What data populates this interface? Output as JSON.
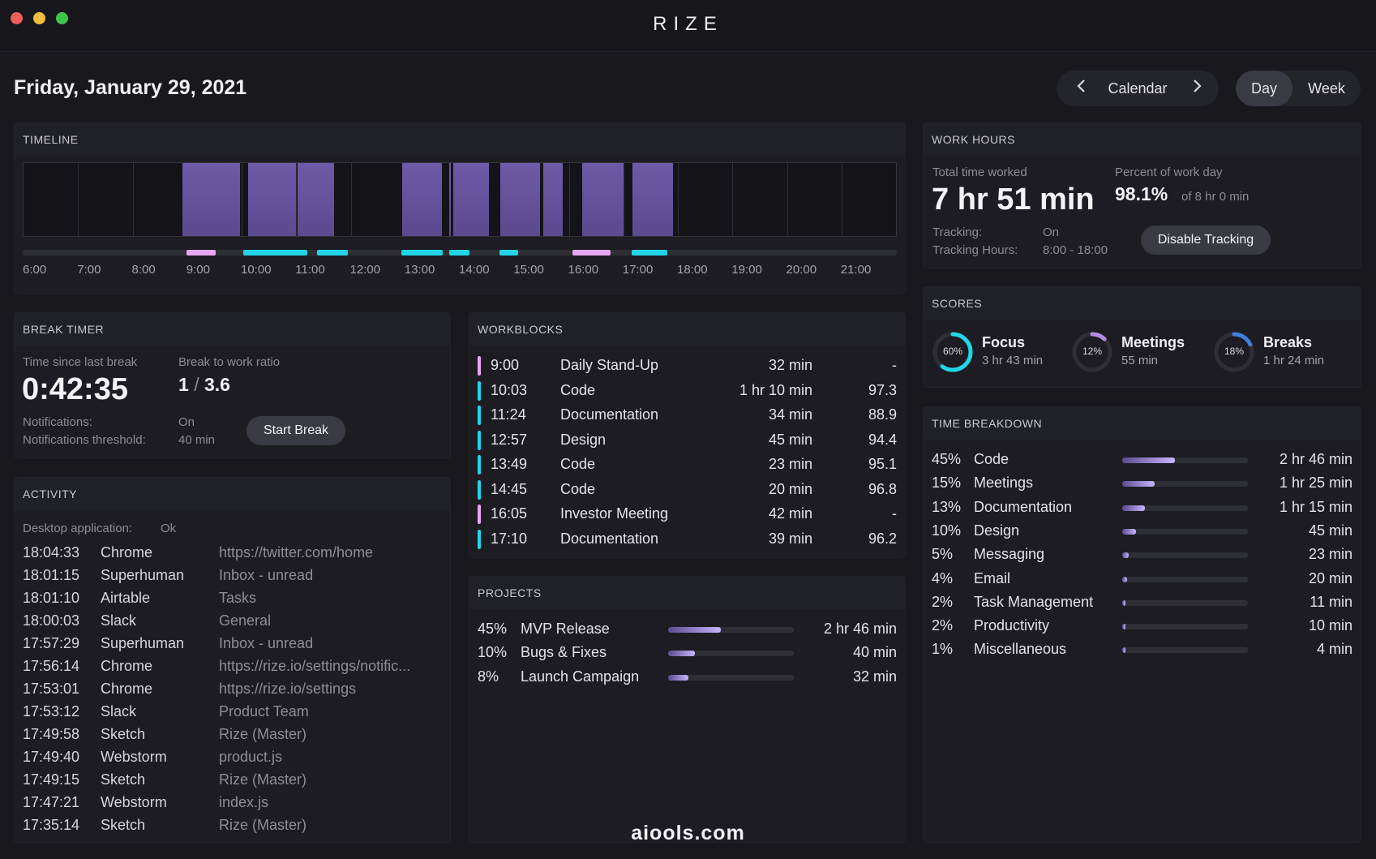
{
  "app": {
    "title": "RIZE"
  },
  "traffic_lights": [
    "#ed5f57",
    "#f4bd3b",
    "#3fc34a"
  ],
  "date": "Friday, January 29, 2021",
  "calendar_nav": {
    "label": "Calendar",
    "prev_icon": "chevron-left-icon",
    "next_icon": "chevron-right-icon"
  },
  "view_toggle": {
    "day": "Day",
    "week": "Week",
    "selected": "Day"
  },
  "colors": {
    "accent_purple": "#7a63c4",
    "meeting_pink": "#e6a6f2",
    "focus_cyan": "#22d4e6",
    "break_blue": "#3d7fe0"
  },
  "timeline": {
    "title": "TIMELINE",
    "ticks": [
      "6:00",
      "7:00",
      "8:00",
      "9:00",
      "10:00",
      "11:00",
      "12:00",
      "13:00",
      "14:00",
      "15:00",
      "16:00",
      "17:00",
      "18:00",
      "19:00",
      "20:00",
      "21:00"
    ],
    "start_hour": 6,
    "end_hour": 22,
    "active_blocks": [
      {
        "start": "8:55",
        "end": "9:00"
      },
      {
        "start": "9:00",
        "end": "9:58"
      },
      {
        "start": "10:07",
        "end": "11:00"
      },
      {
        "start": "11:02",
        "end": "11:42"
      },
      {
        "start": "12:57",
        "end": "13:40"
      },
      {
        "start": "13:48",
        "end": "13:50"
      },
      {
        "start": "13:53",
        "end": "14:32"
      },
      {
        "start": "14:45",
        "end": "15:28"
      },
      {
        "start": "15:32",
        "end": "15:53"
      },
      {
        "start": "16:15",
        "end": "17:00"
      },
      {
        "start": "17:10",
        "end": "17:55"
      }
    ],
    "markers": [
      {
        "start": "9:00",
        "end": "9:32",
        "kind": "meeting"
      },
      {
        "start": "10:03",
        "end": "11:13",
        "kind": "focus"
      },
      {
        "start": "11:24",
        "end": "11:58",
        "kind": "focus"
      },
      {
        "start": "12:57",
        "end": "13:42",
        "kind": "focus"
      },
      {
        "start": "13:49",
        "end": "14:12",
        "kind": "focus"
      },
      {
        "start": "14:45",
        "end": "15:05",
        "kind": "focus"
      },
      {
        "start": "16:05",
        "end": "16:47",
        "kind": "meeting"
      },
      {
        "start": "17:10",
        "end": "17:49",
        "kind": "focus"
      }
    ]
  },
  "work_hours": {
    "title": "WORK HOURS",
    "total_label": "Total time worked",
    "total_value": "7 hr 51 min",
    "percent_label": "Percent of work day",
    "percent_value": "98.1%",
    "percent_of": "of 8 hr 0 min",
    "tracking_label": "Tracking:",
    "tracking_value": "On",
    "tracking_hours_label": "Tracking Hours:",
    "tracking_hours_value": "8:00 - 18:00",
    "disable_button": "Disable Tracking"
  },
  "scores": {
    "title": "SCORES",
    "items": [
      {
        "name": "Focus",
        "value": "3 hr 43 min",
        "percent_label": "60%",
        "percent": 60,
        "color": "#22d4e6"
      },
      {
        "name": "Meetings",
        "value": "55 min",
        "percent_label": "12%",
        "percent": 12,
        "color": "#b48be6"
      },
      {
        "name": "Breaks",
        "value": "1 hr 24 min",
        "percent_label": "18%",
        "percent": 18,
        "color": "#3d7fe0"
      }
    ]
  },
  "break_timer": {
    "title": "BREAK TIMER",
    "since_label": "Time since last break",
    "since_value": "0:42:35",
    "ratio_label": "Break to work ratio",
    "ratio_left": "1",
    "ratio_sep": "/",
    "ratio_right": "3.6",
    "notifications_label": "Notifications:",
    "notifications_value": "On",
    "threshold_label": "Notifications threshold:",
    "threshold_value": "40 min",
    "start_button": "Start Break"
  },
  "workblocks": {
    "title": "WORKBLOCKS",
    "rows": [
      {
        "time": "9:00",
        "name": "Daily Stand-Up",
        "duration": "32 min",
        "score": "-",
        "kind": "meeting"
      },
      {
        "time": "10:03",
        "name": "Code",
        "duration": "1 hr 10 min",
        "score": "97.3",
        "kind": "focus"
      },
      {
        "time": "11:24",
        "name": "Documentation",
        "duration": "34 min",
        "score": "88.9",
        "kind": "focus"
      },
      {
        "time": "12:57",
        "name": "Design",
        "duration": "45 min",
        "score": "94.4",
        "kind": "focus"
      },
      {
        "time": "13:49",
        "name": "Code",
        "duration": "23 min",
        "score": "95.1",
        "kind": "focus"
      },
      {
        "time": "14:45",
        "name": "Code",
        "duration": "20 min",
        "score": "96.8",
        "kind": "focus"
      },
      {
        "time": "16:05",
        "name": "Investor Meeting",
        "duration": "42 min",
        "score": "-",
        "kind": "meeting"
      },
      {
        "time": "17:10",
        "name": "Documentation",
        "duration": "39 min",
        "score": "96.2",
        "kind": "focus"
      }
    ]
  },
  "projects": {
    "title": "PROJECTS",
    "rows": [
      {
        "percent": "45%",
        "fraction": 0.42,
        "name": "MVP Release",
        "duration": "2 hr 46 min"
      },
      {
        "percent": "10%",
        "fraction": 0.21,
        "name": "Bugs & Fixes",
        "duration": "40 min"
      },
      {
        "percent": "8%",
        "fraction": 0.16,
        "name": "Launch Campaign",
        "duration": "32 min"
      }
    ]
  },
  "time_breakdown": {
    "title": "TIME BREAKDOWN",
    "rows": [
      {
        "percent": "45%",
        "fraction": 0.42,
        "name": "Code",
        "duration": "2 hr 46 min"
      },
      {
        "percent": "15%",
        "fraction": 0.26,
        "name": "Meetings",
        "duration": "1 hr 25 min"
      },
      {
        "percent": "13%",
        "fraction": 0.18,
        "name": "Documentation",
        "duration": "1 hr 15 min"
      },
      {
        "percent": "10%",
        "fraction": 0.11,
        "name": "Design",
        "duration": "45 min"
      },
      {
        "percent": "5%",
        "fraction": 0.05,
        "name": "Messaging",
        "duration": "23 min"
      },
      {
        "percent": "4%",
        "fraction": 0.04,
        "name": "Email",
        "duration": "20 min"
      },
      {
        "percent": "2%",
        "fraction": 0.02,
        "name": "Task Management",
        "duration": "11 min"
      },
      {
        "percent": "2%",
        "fraction": 0.02,
        "name": "Productivity",
        "duration": "10 min"
      },
      {
        "percent": "1%",
        "fraction": 0.01,
        "name": "Miscellaneous",
        "duration": "4 min"
      }
    ]
  },
  "activity": {
    "title": "ACTIVITY",
    "desktop_label": "Desktop application:",
    "desktop_value": "Ok",
    "rows": [
      {
        "time": "18:04:33",
        "app": "Chrome",
        "context": "https://twitter.com/home"
      },
      {
        "time": "18:01:15",
        "app": "Superhuman",
        "context": "Inbox - unread"
      },
      {
        "time": "18:01:10",
        "app": "Airtable",
        "context": "Tasks"
      },
      {
        "time": "18:00:03",
        "app": "Slack",
        "context": "General"
      },
      {
        "time": "17:57:29",
        "app": "Superhuman",
        "context": "Inbox - unread"
      },
      {
        "time": "17:56:14",
        "app": "Chrome",
        "context": "https://rize.io/settings/notific..."
      },
      {
        "time": "17:53:01",
        "app": "Chrome",
        "context": "https://rize.io/settings"
      },
      {
        "time": "17:53:12",
        "app": "Slack",
        "context": "Product Team"
      },
      {
        "time": "17:49:58",
        "app": "Sketch",
        "context": "Rize (Master)"
      },
      {
        "time": "17:49:40",
        "app": "Webstorm",
        "context": "product.js"
      },
      {
        "time": "17:49:15",
        "app": "Sketch",
        "context": "Rize (Master)"
      },
      {
        "time": "17:47:21",
        "app": "Webstorm",
        "context": "index.js"
      },
      {
        "time": "17:35:14",
        "app": "Sketch",
        "context": "Rize (Master)"
      }
    ]
  },
  "watermark": "aiools.com"
}
